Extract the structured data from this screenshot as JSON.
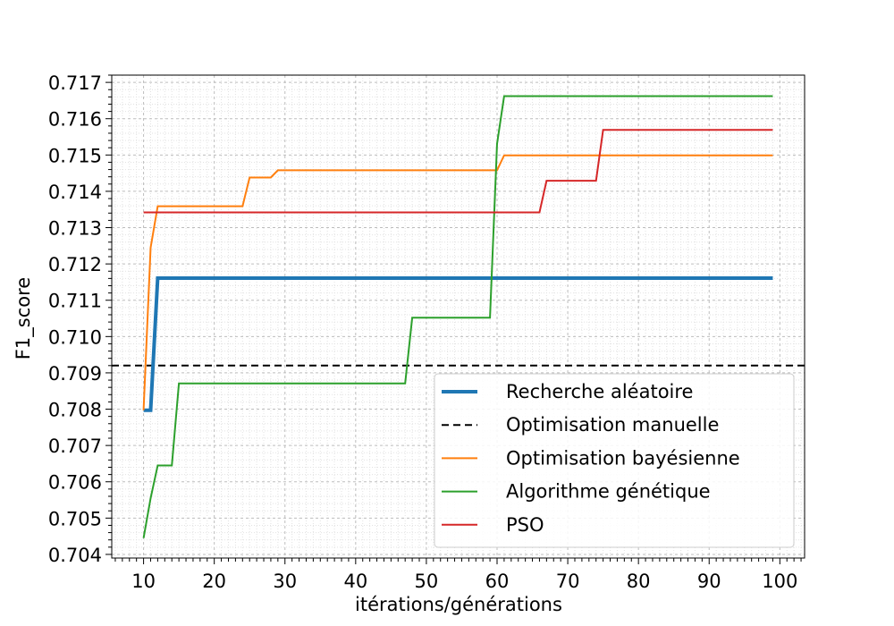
{
  "chart_data": {
    "type": "line",
    "title": "",
    "xlabel": "itérations/générations",
    "ylabel": "F1_score",
    "xlim": [
      5.5,
      103.5
    ],
    "ylim": [
      0.7039,
      0.7172
    ],
    "x_ticks": [
      10,
      20,
      30,
      40,
      50,
      60,
      70,
      80,
      90,
      100
    ],
    "y_ticks": [
      0.704,
      0.705,
      0.706,
      0.707,
      0.708,
      0.709,
      0.71,
      0.711,
      0.712,
      0.713,
      0.714,
      0.715,
      0.716,
      0.717
    ],
    "x_minor_step": 1,
    "y_minor_step": 0.0002,
    "grid": true,
    "legend_position": "lower-right",
    "hlines": [
      {
        "name": "Optimisation manuelle",
        "y": 0.7092,
        "color": "#000000",
        "dash": "8,5",
        "width": 2
      }
    ],
    "series": [
      {
        "name": "Recherche aléatoire",
        "color": "#1f77b4",
        "width": 4,
        "points": [
          [
            10,
            0.70797
          ],
          [
            11,
            0.70797
          ],
          [
            12,
            0.71161
          ],
          [
            99,
            0.71161
          ]
        ]
      },
      {
        "name": "Optimisation bayésienne",
        "color": "#ff7f0e",
        "width": 2,
        "points": [
          [
            10,
            0.70797
          ],
          [
            11,
            0.71245
          ],
          [
            12,
            0.71359
          ],
          [
            24,
            0.71359
          ],
          [
            25,
            0.71438
          ],
          [
            28,
            0.71438
          ],
          [
            29,
            0.71458
          ],
          [
            60,
            0.71458
          ],
          [
            61,
            0.71499
          ],
          [
            99,
            0.71499
          ]
        ]
      },
      {
        "name": "Algorithme génétique",
        "color": "#2ca02c",
        "width": 2,
        "points": [
          [
            10,
            0.70445
          ],
          [
            11,
            0.70555
          ],
          [
            12,
            0.70645
          ],
          [
            14,
            0.70645
          ],
          [
            15,
            0.70871
          ],
          [
            47,
            0.70871
          ],
          [
            48,
            0.71052
          ],
          [
            59,
            0.71052
          ],
          [
            60,
            0.71531
          ],
          [
            61,
            0.71662
          ],
          [
            99,
            0.71662
          ]
        ]
      },
      {
        "name": "PSO",
        "color": "#d62728",
        "width": 2,
        "points": [
          [
            10,
            0.71342
          ],
          [
            66,
            0.71342
          ],
          [
            67,
            0.71429
          ],
          [
            74,
            0.71429
          ],
          [
            75,
            0.71569
          ],
          [
            99,
            0.71569
          ]
        ]
      }
    ],
    "legend": [
      {
        "name": "Recherche aléatoire",
        "color": "#1f77b4",
        "width": 4,
        "dash": ""
      },
      {
        "name": "Optimisation manuelle",
        "color": "#000000",
        "width": 2,
        "dash": "8,5"
      },
      {
        "name": "Optimisation bayésienne",
        "color": "#ff7f0e",
        "width": 2,
        "dash": ""
      },
      {
        "name": "Algorithme génétique",
        "color": "#2ca02c",
        "width": 2,
        "dash": ""
      },
      {
        "name": "PSO",
        "color": "#d62728",
        "width": 2,
        "dash": ""
      }
    ]
  }
}
